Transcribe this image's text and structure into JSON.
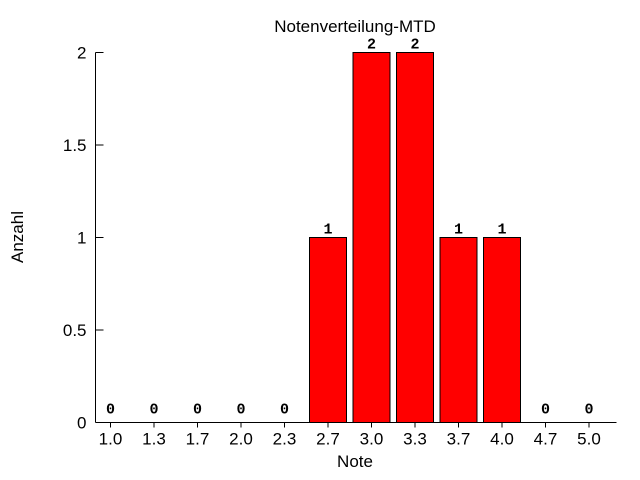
{
  "page": {
    "background": "#ffffff"
  },
  "chart_data": {
    "type": "bar",
    "title": "Notenverteilung-MTD",
    "xlabel": "Note",
    "ylabel": "Anzahl",
    "categories": [
      "1.0",
      "1.3",
      "1.7",
      "2.0",
      "2.3",
      "2.7",
      "3.0",
      "3.3",
      "3.7",
      "4.0",
      "4.7",
      "5.0"
    ],
    "values": [
      0,
      0,
      0,
      0,
      0,
      1,
      2,
      2,
      1,
      1,
      0,
      0
    ],
    "bar_labels": [
      "0",
      "0",
      "0",
      "0",
      "0",
      "1",
      "2",
      "2",
      "1",
      "1",
      "0",
      "0"
    ],
    "ylim": [
      0,
      2
    ],
    "yticks": [
      0,
      0.5,
      1,
      1.5,
      2
    ],
    "ytick_labels": [
      "0",
      "0.5",
      "1",
      "1.5",
      "2"
    ],
    "grid": false,
    "legend": "none",
    "bar_color": "#ff0000",
    "bar_border_color": "#000000",
    "axis_color": "#000000",
    "text_color": "#000000"
  }
}
